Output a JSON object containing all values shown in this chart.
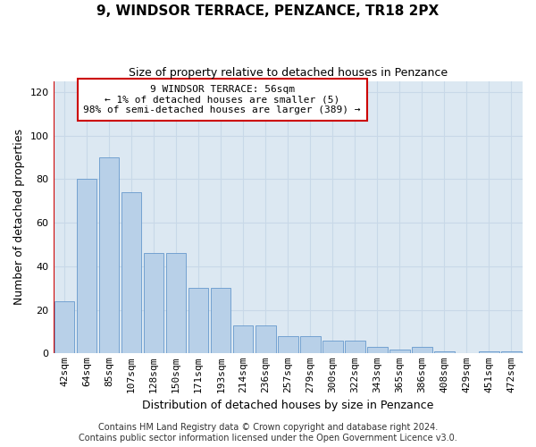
{
  "title": "9, WINDSOR TERRACE, PENZANCE, TR18 2PX",
  "subtitle": "Size of property relative to detached houses in Penzance",
  "xlabel": "Distribution of detached houses by size in Penzance",
  "ylabel": "Number of detached properties",
  "categories": [
    "42sqm",
    "64sqm",
    "85sqm",
    "107sqm",
    "128sqm",
    "150sqm",
    "171sqm",
    "193sqm",
    "214sqm",
    "236sqm",
    "257sqm",
    "279sqm",
    "300sqm",
    "322sqm",
    "343sqm",
    "365sqm",
    "386sqm",
    "408sqm",
    "429sqm",
    "451sqm",
    "472sqm"
  ],
  "values": [
    24,
    80,
    90,
    74,
    46,
    46,
    30,
    30,
    13,
    13,
    8,
    8,
    6,
    6,
    3,
    2,
    3,
    1,
    0,
    1,
    1
  ],
  "bar_color": "#b8d0e8",
  "bar_edge_color": "#6699cc",
  "vline_color": "#cc0000",
  "vline_x": -0.5,
  "ylim": [
    0,
    125
  ],
  "yticks": [
    0,
    20,
    40,
    60,
    80,
    100,
    120
  ],
  "annotation_text": "9 WINDSOR TERRACE: 56sqm\n← 1% of detached houses are smaller (5)\n98% of semi-detached houses are larger (389) →",
  "annotation_box_facecolor": "#ffffff",
  "annotation_box_edgecolor": "#cc0000",
  "grid_color": "#c8d8e8",
  "plot_bg_color": "#dce8f2",
  "footer_line1": "Contains HM Land Registry data © Crown copyright and database right 2024.",
  "footer_line2": "Contains public sector information licensed under the Open Government Licence v3.0.",
  "title_fontsize": 11,
  "subtitle_fontsize": 9,
  "ylabel_fontsize": 9,
  "xlabel_fontsize": 9,
  "tick_fontsize": 8,
  "annotation_fontsize": 8,
  "footer_fontsize": 7
}
